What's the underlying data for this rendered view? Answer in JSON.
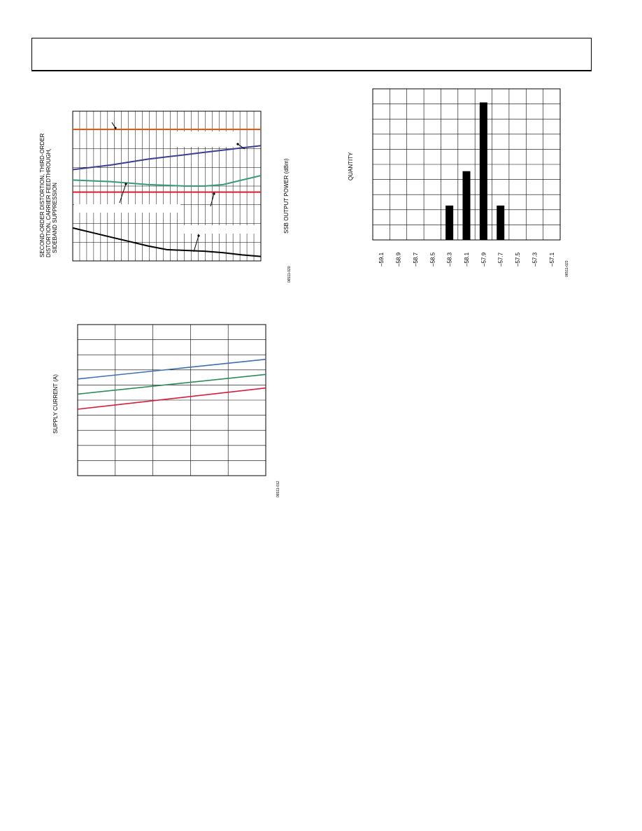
{
  "charts": {
    "dist": {
      "ylabel_lines": [
        "SECOND-ORDER DISTORTION, THIRD-ORDER",
        "DISTORTION, CARRIER FEEDTHROUGH,",
        "SIDEBAND SUPPRESSION"
      ],
      "y2label": "SSB OUTPUT POWER (dBm)",
      "code": "06511-020"
    },
    "supply": {
      "ylabel": "SUPPLY CURRENT (A)",
      "code": "06511-012"
    },
    "hist": {
      "ylabel": "QUANTITY",
      "code": "06511-023"
    }
  },
  "chart_data": [
    {
      "type": "line",
      "title": "",
      "ylabel": "SECOND-ORDER DISTORTION, THIRD-ORDER DISTORTION, CARRIER FEEDTHROUGH, SIDEBAND SUPPRESSION",
      "y2label": "SSB OUTPUT POWER (dBm)",
      "x": [
        0,
        0.1,
        0.2,
        0.3,
        0.4,
        0.5,
        0.6,
        0.7,
        0.8,
        0.9,
        1.0
      ],
      "ylim": [
        0,
        1
      ],
      "grid": true,
      "series": [
        {
          "color": "#e8742b",
          "values": [
            0.88,
            0.88,
            0.88,
            0.88,
            0.88,
            0.88,
            0.88,
            0.88,
            0.88,
            0.88,
            0.88
          ]
        },
        {
          "color": "#3b3f8f",
          "values": [
            0.61,
            0.625,
            0.64,
            0.66,
            0.68,
            0.695,
            0.71,
            0.725,
            0.74,
            0.755,
            0.77
          ]
        },
        {
          "color": "#3a9a78",
          "values": [
            0.54,
            0.535,
            0.53,
            0.52,
            0.51,
            0.505,
            0.5,
            0.5,
            0.51,
            0.54,
            0.57
          ]
        },
        {
          "color": "#d81e2a",
          "values": [
            0.46,
            0.46,
            0.46,
            0.46,
            0.46,
            0.46,
            0.46,
            0.46,
            0.46,
            0.46,
            0.46
          ]
        },
        {
          "color": "#000000",
          "values": [
            0.22,
            0.19,
            0.16,
            0.13,
            0.1,
            0.075,
            0.07,
            0.065,
            0.055,
            0.04,
            0.03
          ]
        }
      ]
    },
    {
      "type": "line",
      "title": "",
      "ylabel": "SUPPLY CURRENT (A)",
      "x": [
        0,
        1
      ],
      "ylim": [
        0,
        10
      ],
      "grid": true,
      "series": [
        {
          "color": "#3e6fae",
          "values": [
            6.4,
            7.7
          ]
        },
        {
          "color": "#2e8a58",
          "values": [
            5.4,
            6.7
          ]
        },
        {
          "color": "#d21f3c",
          "values": [
            4.4,
            5.8
          ]
        }
      ]
    },
    {
      "type": "bar",
      "title": "",
      "ylabel": "QUANTITY",
      "categories": [
        "–59.1",
        "–58.9",
        "–58.7",
        "–58.5",
        "–58.3",
        "–58.1",
        "–57.9",
        "–57.7",
        "–57.5",
        "–57.3",
        "–57.1"
      ],
      "values": [
        0,
        0,
        0,
        0,
        1,
        2,
        4,
        1,
        0,
        0,
        0
      ],
      "ylim": [
        0,
        4
      ],
      "grid": true
    }
  ]
}
